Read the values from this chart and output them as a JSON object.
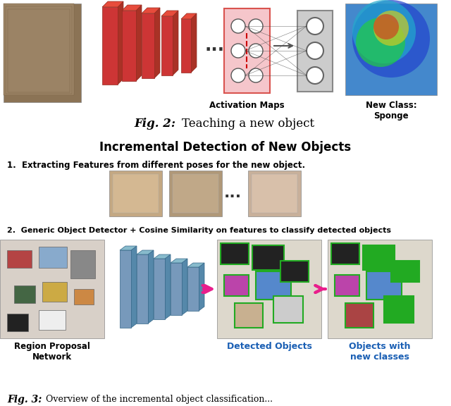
{
  "fig_caption": "Fig. 2:",
  "fig_caption2": "Teaching a new object",
  "section_title": "Incremental Detection of New Objects",
  "step1_label": "1.  Extracting Features from different poses for the new object.",
  "step2_label": "2.  Generic Object Detector + Cosine Similarity on features to classify detected objects",
  "label_rpn": "Region Proposal\nNetwork",
  "label_detected": "Detected Objects",
  "label_objects_new": "Objects with\nnew classes",
  "label_activation": "Activation Maps",
  "label_new_class": "New Class:\nSponge",
  "bg_color": "#ffffff",
  "text_color": "#000000",
  "blue_label_color": "#1a5fb4",
  "top_cnn_color": "#d9534f",
  "bottom_cnn_color": "#6699bb",
  "arrow_color": "#e91e8c",
  "dots_color": "#333333",
  "fig_width": 6.4,
  "fig_height": 5.76
}
